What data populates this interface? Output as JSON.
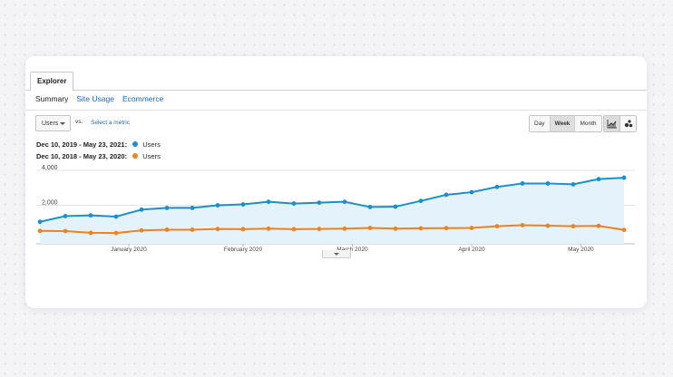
{
  "explorer_tab": "Explorer",
  "subtabs": [
    "Summary",
    "Site Usage",
    "Ecommerce"
  ],
  "metric_select": "Users",
  "vs_label": "vs.",
  "select_metric_link": "Select a metric",
  "range_buttons": [
    "Day",
    "Week",
    "Month"
  ],
  "legend": [
    {
      "period": "Dec 10, 2019 - May 23, 2021:",
      "metric": "Users",
      "color": "#1a8fd0"
    },
    {
      "period": "Dec 10, 2018 - May 23, 2020:",
      "metric": "Users",
      "color": "#f0821e"
    }
  ],
  "chart_data": {
    "type": "line",
    "x": [
      "Dec 10",
      "Dec 17",
      "Dec 24",
      "Dec 31",
      "Jan 7",
      "Jan 14",
      "Jan 21",
      "Jan 28",
      "Feb 4",
      "Feb 11",
      "Feb 18",
      "Feb 25",
      "Mar 3",
      "Mar 10",
      "Mar 17",
      "Mar 24",
      "Mar 31",
      "Apr 7",
      "Apr 14",
      "Apr 21",
      "Apr 28",
      "May 5",
      "May 12",
      "May 19"
    ],
    "x_tick_labels": [
      "January 2020",
      "February 2020",
      "March 2020",
      "April 2020",
      "May 2020"
    ],
    "y_tick_labels": [
      "4,000",
      "2,000"
    ],
    "ylim": [
      0,
      4000
    ],
    "series": [
      {
        "name": "Dec 10, 2019 - May 23, 2021: Users",
        "color": "#1a8fd0",
        "values": [
          1050,
          1380,
          1420,
          1350,
          1750,
          1850,
          1850,
          2000,
          2050,
          2200,
          2100,
          2150,
          2200,
          1900,
          1920,
          2250,
          2600,
          2750,
          3050,
          3250,
          3250,
          3200,
          3500,
          3580
        ]
      },
      {
        "name": "Dec 10, 2018 - May 23, 2020: Users",
        "color": "#f0821e",
        "values": [
          530,
          520,
          420,
          410,
          560,
          600,
          600,
          640,
          630,
          660,
          630,
          640,
          660,
          700,
          660,
          680,
          690,
          700,
          800,
          860,
          830,
          800,
          820,
          590
        ]
      }
    ],
    "grid": true,
    "area_fill": true
  }
}
